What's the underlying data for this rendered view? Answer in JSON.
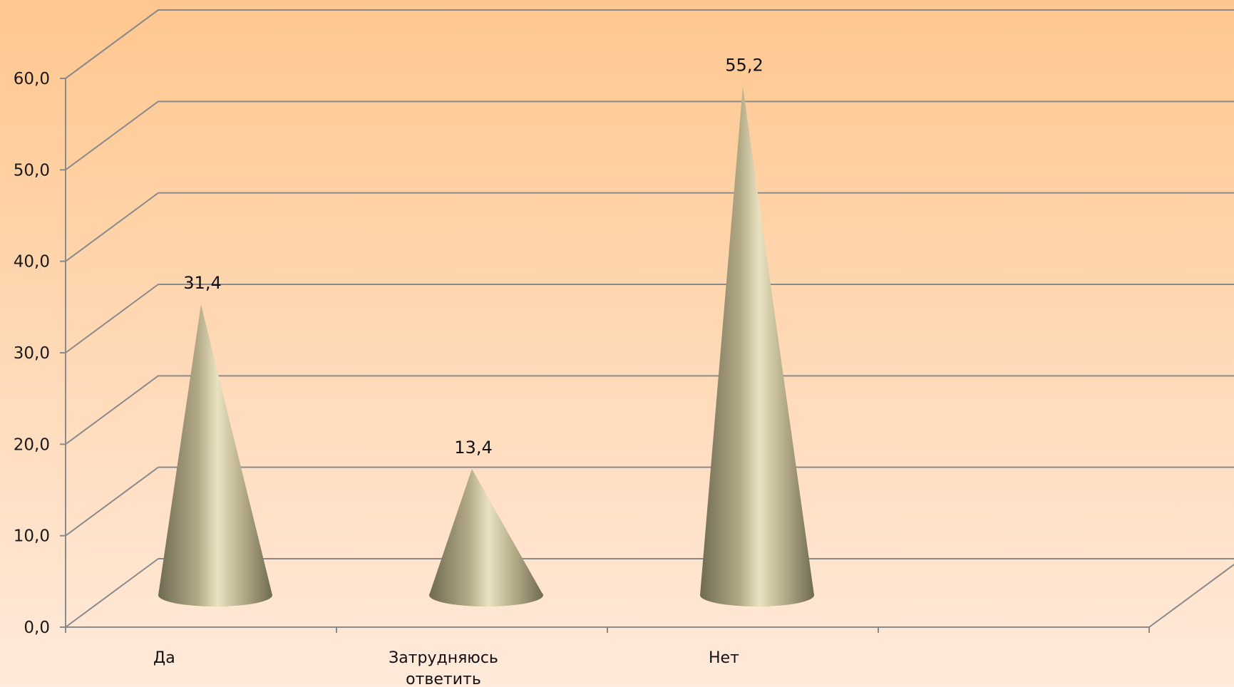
{
  "chart_data": {
    "type": "bar",
    "bar_shape": "cone",
    "view": "3d",
    "categories": [
      "Да",
      "Затрудняюсь ответить",
      "Нет"
    ],
    "category_lines": [
      [
        "Да"
      ],
      [
        "Затрудняюсь",
        "ответить"
      ],
      [
        "Нет"
      ]
    ],
    "values": [
      31.4,
      13.4,
      55.2
    ],
    "value_labels": [
      "31,4",
      "13,4",
      "55,2"
    ],
    "yticks": [
      "0,0",
      "10,0",
      "20,0",
      "30,0",
      "40,0",
      "50,0",
      "60,0"
    ],
    "ylim": [
      0,
      60
    ],
    "grid": true,
    "legend": "none",
    "title": "",
    "xlabel": "",
    "ylabel": ""
  },
  "colors": {
    "background_top": "#FFC78F",
    "background_bottom": "#FFEADB",
    "grid": "#8a8a8a",
    "cone_dark": "#6f6a53",
    "cone_mid": "#b3aa86",
    "cone_light": "#e9e2c1"
  }
}
